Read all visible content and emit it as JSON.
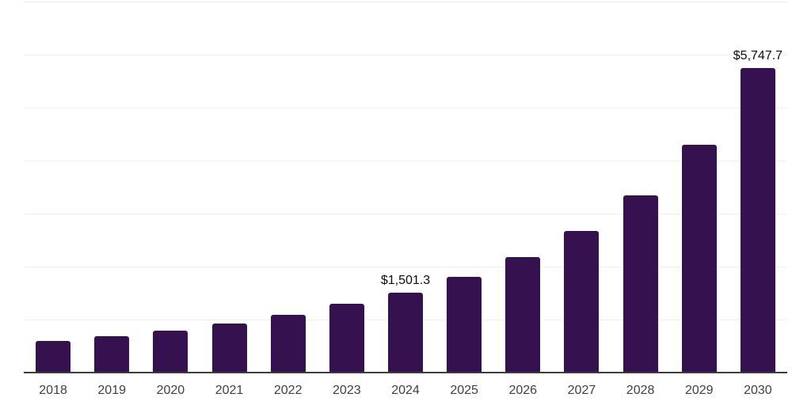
{
  "chart_data": {
    "type": "bar",
    "title": "",
    "xlabel": "",
    "ylabel": "",
    "categories": [
      "2018",
      "2019",
      "2020",
      "2021",
      "2022",
      "2023",
      "2024",
      "2025",
      "2026",
      "2027",
      "2028",
      "2029",
      "2030"
    ],
    "values": [
      600,
      690,
      790,
      925,
      1090,
      1300,
      1501.3,
      1810,
      2180,
      2675,
      3350,
      4305,
      5747.7
    ],
    "annotations": [
      {
        "category": "2024",
        "text": "$1,501.3"
      },
      {
        "category": "2030",
        "text": "$5,747.7"
      }
    ],
    "ylim": [
      0,
      7000
    ],
    "gridline_step": 1000,
    "grid": true,
    "legend": false,
    "y_axis_labels_visible": false,
    "colors": {
      "bar": "#35124F",
      "axis_line": "#3D3D3D",
      "gridline": "#F0F0F0",
      "tick_label": "#3F3F3F",
      "annotation_text": "#0D0D0D",
      "background": "#FFFFFF"
    }
  }
}
